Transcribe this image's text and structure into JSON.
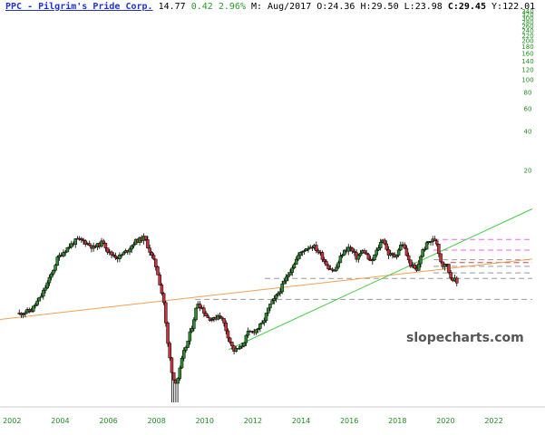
{
  "header": {
    "symbol": "PPC",
    "name_sep": " - ",
    "name": "Pilgrim's Pride Corp.",
    "last": "14.77",
    "change": "0.42",
    "change_pct": "2.96%",
    "period": "M: Aug/2017",
    "open_label": "O:",
    "open": "24.36",
    "high_label": "H:",
    "high": "29.50",
    "low_label": "L:",
    "low": "23.98",
    "close_label": "C:",
    "close": "29.45",
    "y_label": "Y:",
    "y": "122.01"
  },
  "watermark": "slopecharts.com",
  "colors": {
    "up": "#2e8b2e",
    "down": "#c8323c",
    "orange": "#f0a050",
    "green": "#44cc44",
    "grid": "#999999",
    "axis": "#1f8f1f"
  },
  "chart_data": {
    "type": "candlestick",
    "scale": "log",
    "x_tick_labels": [
      "2002",
      "2004",
      "2006",
      "2008",
      "2010",
      "2012",
      "2014",
      "2016",
      "2018",
      "2020",
      "2022"
    ],
    "xlim": [
      2001.5,
      2023.6
    ],
    "y_tick_labels": [
      "340",
      "320",
      "300",
      "280",
      "260",
      "240",
      "220",
      "200",
      "180",
      "160",
      "140",
      "120",
      "100",
      "80",
      "60",
      "40",
      "20"
    ],
    "ylim": [
      0.3,
      350
    ],
    "price_path": [
      [
        2002.3,
        1.55
      ],
      [
        2002.8,
        1.65
      ],
      [
        2003.2,
        2.1
      ],
      [
        2003.6,
        3.0
      ],
      [
        2003.9,
        4.2
      ],
      [
        2004.3,
        5.0
      ],
      [
        2004.7,
        5.8
      ],
      [
        2005.0,
        5.6
      ],
      [
        2005.4,
        5.0
      ],
      [
        2005.8,
        5.6
      ],
      [
        2006.0,
        4.6
      ],
      [
        2006.4,
        4.2
      ],
      [
        2006.8,
        4.8
      ],
      [
        2007.1,
        5.6
      ],
      [
        2007.5,
        6.0
      ],
      [
        2007.8,
        4.3
      ],
      [
        2008.0,
        3.5
      ],
      [
        2008.3,
        1.9
      ],
      [
        2008.45,
        0.95
      ],
      [
        2008.6,
        0.6
      ],
      [
        2008.75,
        0.45
      ],
      [
        2008.9,
        0.5
      ],
      [
        2009.1,
        0.75
      ],
      [
        2009.3,
        0.95
      ],
      [
        2009.5,
        1.3
      ],
      [
        2009.7,
        1.9
      ],
      [
        2009.9,
        1.7
      ],
      [
        2010.1,
        1.45
      ],
      [
        2010.4,
        1.4
      ],
      [
        2010.6,
        1.55
      ],
      [
        2010.8,
        1.3
      ],
      [
        2011.0,
        1.0
      ],
      [
        2011.2,
        0.8
      ],
      [
        2011.5,
        0.85
      ],
      [
        2011.8,
        1.1
      ],
      [
        2012.1,
        1.15
      ],
      [
        2012.4,
        1.3
      ],
      [
        2012.7,
        1.8
      ],
      [
        2012.9,
        2.0
      ],
      [
        2013.2,
        2.5
      ],
      [
        2013.6,
        3.5
      ],
      [
        2013.9,
        4.4
      ],
      [
        2014.2,
        5.0
      ],
      [
        2014.5,
        5.2
      ],
      [
        2014.8,
        4.5
      ],
      [
        2015.1,
        3.6
      ],
      [
        2015.4,
        3.3
      ],
      [
        2015.7,
        4.5
      ],
      [
        2016.0,
        5.1
      ],
      [
        2016.3,
        4.2
      ],
      [
        2016.6,
        4.8
      ],
      [
        2016.9,
        3.8
      ],
      [
        2017.2,
        5.0
      ],
      [
        2017.4,
        6.0
      ],
      [
        2017.6,
        4.5
      ],
      [
        2017.9,
        4.3
      ],
      [
        2018.2,
        5.5
      ],
      [
        2018.5,
        3.8
      ],
      [
        2018.8,
        3.3
      ],
      [
        2019.0,
        4.6
      ],
      [
        2019.3,
        5.6
      ],
      [
        2019.6,
        5.8
      ],
      [
        2019.85,
        3.6
      ],
      [
        2020.0,
        3.9
      ],
      [
        2020.2,
        3.0
      ],
      [
        2020.4,
        2.8
      ],
      [
        2020.5,
        2.6
      ]
    ],
    "trendlines": [
      {
        "color": "#f0a050",
        "style": "solid",
        "from": [
          2001.5,
          1.4
        ],
        "to": [
          2023.6,
          4.1
        ]
      },
      {
        "color": "#44cc44",
        "style": "solid",
        "from": [
          2011.0,
          0.82
        ],
        "to": [
          2023.6,
          10.0
        ]
      }
    ],
    "hlines": [
      {
        "color": "#ee66ee",
        "style": "dashed",
        "x_start": 2019.5,
        "y": 5.8
      },
      {
        "color": "#ee66ee",
        "style": "dashed",
        "x_start": 2019.5,
        "y": 4.8
      },
      {
        "color": "#999999",
        "style": "dashed",
        "x_start": 2019.5,
        "y": 4.05
      },
      {
        "color": "#cc4444",
        "style": "dashed",
        "x_start": 2020.2,
        "y": 3.85
      },
      {
        "color": "#999999",
        "style": "dashed",
        "x_start": 2019.5,
        "y": 3.6
      },
      {
        "color": "#999999",
        "style": "dashed",
        "x_start": 2019.5,
        "y": 3.2
      },
      {
        "color": "#999999",
        "style": "dashed",
        "x_start": 2012.5,
        "y": 2.9
      },
      {
        "color": "#999999",
        "style": "dashed",
        "x_start": 2009.6,
        "y": 2.0
      }
    ]
  }
}
